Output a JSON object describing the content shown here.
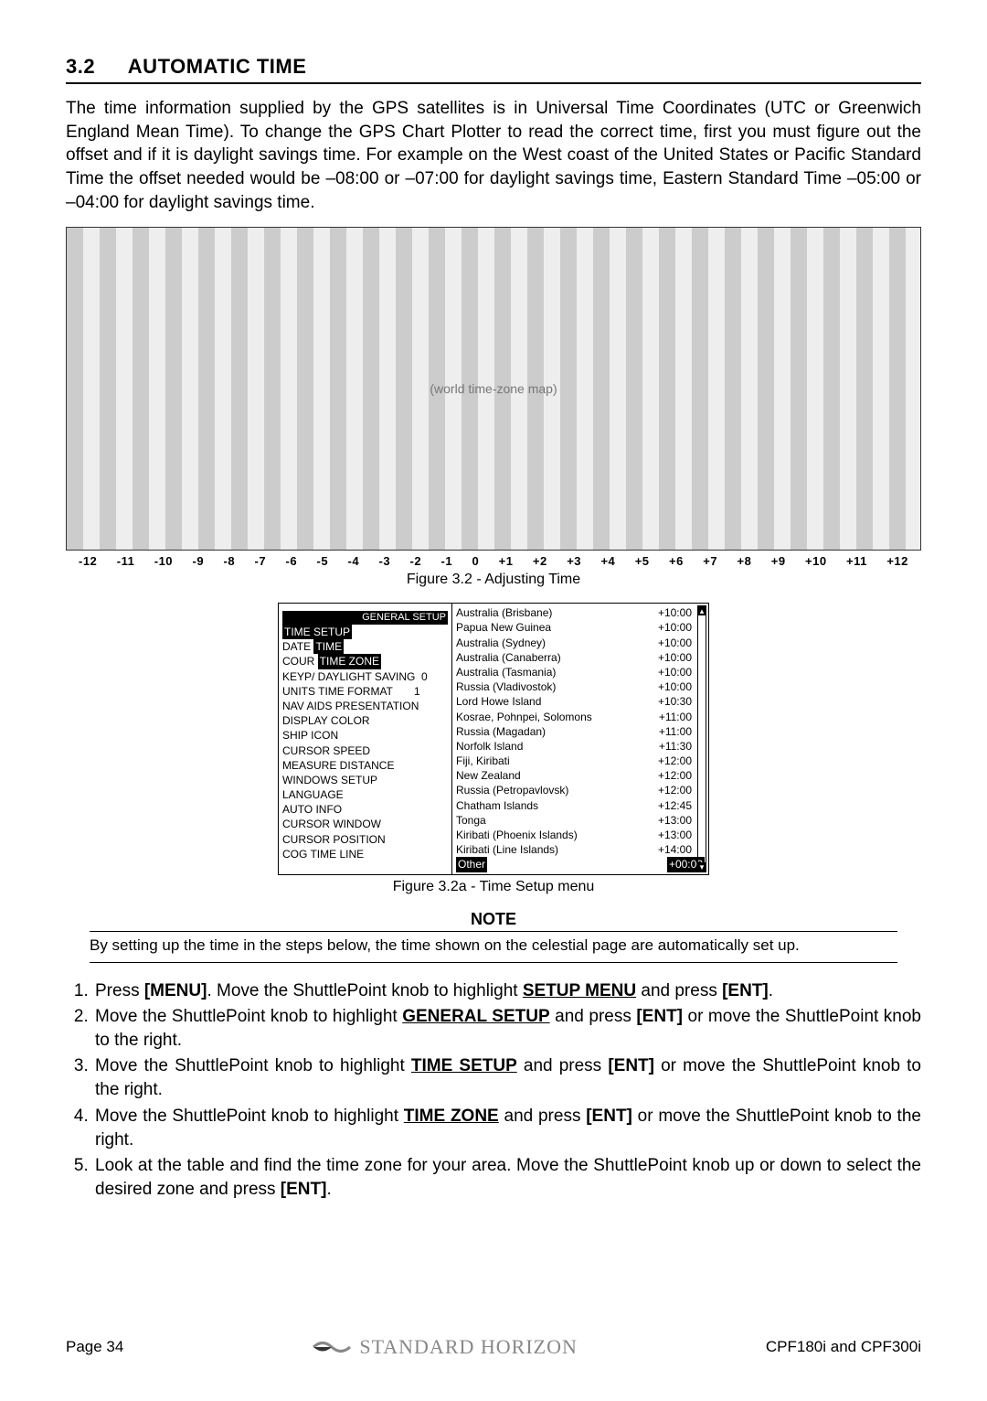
{
  "heading": {
    "num": "3.2",
    "title": "AUTOMATIC TIME"
  },
  "intro": "The time information supplied by the GPS satellites is in Universal Time Coordinates (UTC or Greenwich England Mean Time). To change the GPS Chart Plotter to read the correct time, first you must figure out the offset and if it is daylight savings time. For example on the West coast of the United States or Pacific Standard Time the offset needed would be –08:00 or –07:00 for daylight savings time, Eastern Standard Time –05:00 or –04:00 for daylight savings time.",
  "map": {
    "caption": "Figure 3.2 - Adjusting Time",
    "ticks": [
      "-12",
      "-11",
      "-10",
      "-9",
      "-8",
      "-7",
      "-6",
      "-5",
      "-4",
      "-3",
      "-2",
      "-1",
      "0",
      "+1",
      "+2",
      "+3",
      "+4",
      "+5",
      "+6",
      "+7",
      "+8",
      "+9",
      "+10",
      "+11",
      "+12"
    ],
    "placeholder": "(world time-zone map)"
  },
  "menu": {
    "caption": "Figure 3.2a - Time Setup menu",
    "general_setup": "GENERAL SETUP",
    "left_rows_html": [
      "<span class='hl'>TIME SETUP</span>",
      "DATE <span class='hl'>TIME</span>",
      "COUR <span class='hl'>TIME ZONE</span>",
      "KEYP/ DAYLIGHT SAVING &nbsp;0",
      "UNITS TIME FORMAT &nbsp;&nbsp;&nbsp;&nbsp;&nbsp;&nbsp;1",
      "NAV AIDS PRESENTATION",
      "DISPLAY COLOR",
      "SHIP ICON",
      "CURSOR SPEED",
      "MEASURE DISTANCE",
      "WINDOWS SETUP",
      "LANGUAGE",
      "AUTO INFO",
      "CURSOR WINDOW",
      "CURSOR POSITION",
      "COG TIME LINE"
    ],
    "right_rows": [
      [
        "Australia (Brisbane)",
        "+10:00"
      ],
      [
        "Papua New Guinea",
        "+10:00"
      ],
      [
        "Australia (Sydney)",
        "+10:00"
      ],
      [
        "Australia (Canaberra)",
        "+10:00"
      ],
      [
        "Australia (Tasmania)",
        "+10:00"
      ],
      [
        "Russia (Vladivostok)",
        "+10:00"
      ],
      [
        "Lord Howe Island",
        "+10:30"
      ],
      [
        "Kosrae, Pohnpei, Solomons",
        "+11:00"
      ],
      [
        "Russia (Magadan)",
        "+11:00"
      ],
      [
        "Norfolk Island",
        "+11:30"
      ],
      [
        "Fiji, Kiribati",
        "+12:00"
      ],
      [
        "New Zealand",
        "+12:00"
      ],
      [
        "Russia (Petropavlovsk)",
        "+12:00"
      ],
      [
        "Chatham Islands",
        "+12:45"
      ],
      [
        "Tonga",
        "+13:00"
      ],
      [
        "Kiribati (Phoenix Islands)",
        "+13:00"
      ],
      [
        "Kiribati (Line Islands)",
        "+14:00"
      ]
    ],
    "other": [
      "Other",
      "+00:00"
    ]
  },
  "note": {
    "title": "NOTE",
    "body": "By setting up the time in the steps below, the time shown on the celestial page are automatically set up."
  },
  "steps": [
    "Press <b>[MENU]</b>. Move the ShuttlePoint knob to highlight <b class='u'>SETUP MENU</b> and press <b>[ENT]</b>.",
    "Move the ShuttlePoint knob to highlight <b class='u'>GENERAL SETUP</b> and press <b>[ENT]</b> or move the ShuttlePoint knob to the right.",
    "Move the ShuttlePoint knob to highlight <b class='u'>TIME SETUP</b> and press <b>[ENT]</b> or move the ShuttlePoint knob to the right.",
    "Move the ShuttlePoint knob to highlight <b class='u'>TIME ZONE</b> and press <b>[ENT]</b> or move the ShuttlePoint knob to the right.",
    "Look at the table and find the time zone for your area. Move the ShuttlePoint knob up or down to select the desired zone and press <b>[ENT]</b>."
  ],
  "footer": {
    "page": "Page  34",
    "brand": "STANDARD HORIZON",
    "model": "CPF180i and CPF300i"
  }
}
